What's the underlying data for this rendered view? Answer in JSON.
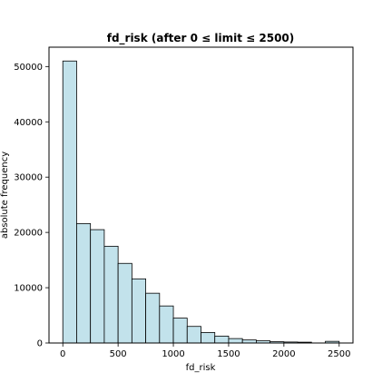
{
  "chart_data": {
    "type": "bar",
    "title": "fd_risk (after 0 ≤ limit ≤ 2500)",
    "xlabel": "fd_risk",
    "ylabel": "absolute frequency",
    "bin_edges": [
      0,
      125,
      250,
      375,
      500,
      625,
      750,
      875,
      1000,
      1125,
      1250,
      1375,
      1500,
      1625,
      1750,
      1875,
      2000,
      2125,
      2250,
      2375,
      2500
    ],
    "values": [
      51000,
      21600,
      20500,
      17500,
      14400,
      11600,
      9000,
      6700,
      4500,
      3000,
      1900,
      1250,
      800,
      550,
      400,
      230,
      180,
      150,
      0,
      300
    ],
    "xlim": [
      -125,
      2625
    ],
    "ylim": [
      0,
      53500
    ],
    "xticks": [
      0,
      500,
      1000,
      1500,
      2000,
      2500
    ],
    "xtick_labels": [
      "0",
      "500",
      "1000",
      "1500",
      "2000",
      "2500"
    ],
    "yticks": [
      0,
      10000,
      20000,
      30000,
      40000,
      50000
    ],
    "ytick_labels": [
      "0",
      "10000",
      "20000",
      "30000",
      "40000",
      "50000"
    ],
    "bar_color": "#c2e2eb",
    "edge_color": "#000000",
    "grid": false,
    "legend": "none"
  }
}
